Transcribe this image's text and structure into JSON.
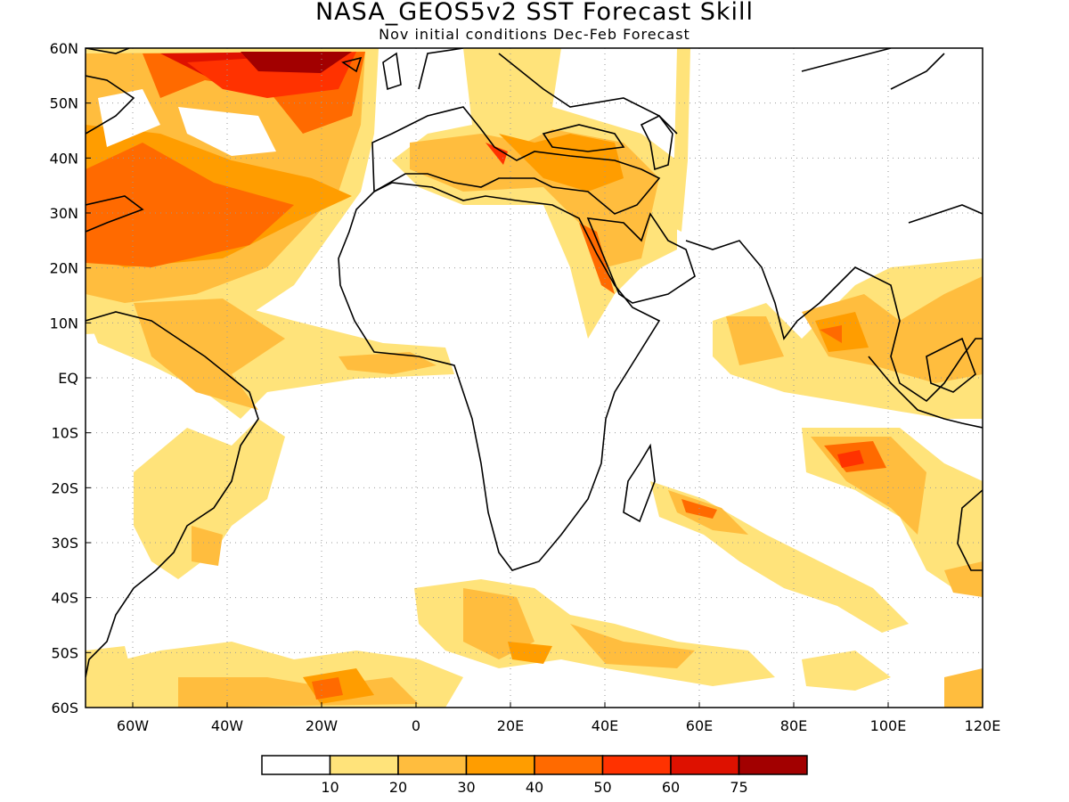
{
  "header": {
    "title": "NASA_GEOS5v2 SST Forecast Skill",
    "subtitle": "Nov initial conditions  Dec-Feb Forecast"
  },
  "map": {
    "lon_range": [
      -70,
      120
    ],
    "lat_range": [
      -60,
      60
    ],
    "lat_ticks": [
      {
        "value": 60,
        "label": "60N"
      },
      {
        "value": 50,
        "label": "50N"
      },
      {
        "value": 40,
        "label": "40N"
      },
      {
        "value": 30,
        "label": "30N"
      },
      {
        "value": 20,
        "label": "20N"
      },
      {
        "value": 10,
        "label": "10N"
      },
      {
        "value": 0,
        "label": "EQ"
      },
      {
        "value": -10,
        "label": "10S"
      },
      {
        "value": -20,
        "label": "20S"
      },
      {
        "value": -30,
        "label": "30S"
      },
      {
        "value": -40,
        "label": "40S"
      },
      {
        "value": -50,
        "label": "50S"
      },
      {
        "value": -60,
        "label": "60S"
      }
    ],
    "lon_ticks": [
      {
        "value": -60,
        "label": "60W"
      },
      {
        "value": -40,
        "label": "40W"
      },
      {
        "value": -20,
        "label": "20W"
      },
      {
        "value": 0,
        "label": "0"
      },
      {
        "value": 20,
        "label": "20E"
      },
      {
        "value": 40,
        "label": "40E"
      },
      {
        "value": 60,
        "label": "60E"
      },
      {
        "value": 80,
        "label": "80E"
      },
      {
        "value": 100,
        "label": "100E"
      },
      {
        "value": 120,
        "label": "120E"
      }
    ]
  },
  "legend": {
    "colors": [
      "#ffffff",
      "#ffe37a",
      "#ffbd3e",
      "#ff9d00",
      "#ff6a00",
      "#ff3200",
      "#de1100",
      "#a20000"
    ],
    "labels": [
      "10",
      "20",
      "30",
      "40",
      "50",
      "60",
      "75"
    ]
  }
}
